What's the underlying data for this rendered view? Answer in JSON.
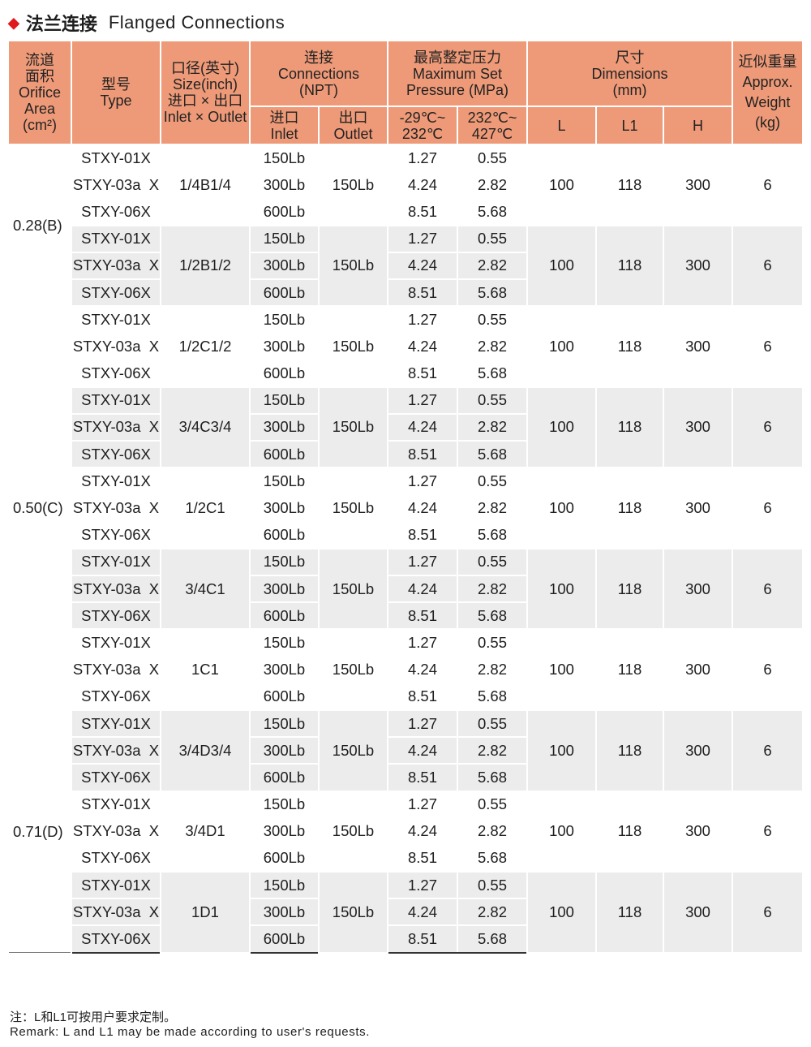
{
  "title": {
    "zh": "法兰连接",
    "en": "Flanged Connections",
    "bullet_color": "#e0191e"
  },
  "colors": {
    "header": "#ee9a78",
    "shade": "#ececec"
  },
  "headers": {
    "orifice": "流道\n面积\nOrifice\nArea\n(cm²)",
    "type": "型号\nType",
    "size": "口径(英寸)\nSize(inch)\n进口 × 出口\nInlet × Outlet",
    "connections": "连接\nConnections\n(NPT)",
    "inlet": "进口\nInlet",
    "outlet": "出口\nOutlet",
    "pressure": "最高整定压力\nMaximum Set\nPressure (MPa)",
    "p1": "-29℃~\n232℃",
    "p2": "232℃~\n427℃",
    "dimensions": "尺寸\nDimensions\n(mm)",
    "L": "L",
    "L1": "L1",
    "H": "H",
    "weight": "近似重量\nApprox.\nWeight\n(kg)"
  },
  "orifices": [
    {
      "label": "0.28(B)",
      "groups": 2
    },
    {
      "label": "0.50(C)",
      "groups": 5
    },
    {
      "label": "0.71(D)",
      "groups": 3
    }
  ],
  "groups": [
    {
      "size": "1/4B1/4"
    },
    {
      "size": "1/2B1/2"
    },
    {
      "size": "1/2C1/2"
    },
    {
      "size": "3/4C3/4"
    },
    {
      "size": "1/2C1"
    },
    {
      "size": "3/4C1"
    },
    {
      "size": "1C1"
    },
    {
      "size": "3/4D3/4"
    },
    {
      "size": "3/4D1"
    },
    {
      "size": "1D1"
    }
  ],
  "group_rows": [
    {
      "type": "STXY-01X",
      "inlet": "150Lb",
      "p1": "1.27",
      "p2": "0.55"
    },
    {
      "type": "STXY-03a  X",
      "inlet": "300Lb",
      "p1": "4.24",
      "p2": "2.82"
    },
    {
      "type": "STXY-06X",
      "inlet": "600Lb",
      "p1": "8.51",
      "p2": "5.68"
    }
  ],
  "group_common": {
    "outlet": "150Lb",
    "L": "100",
    "L1": "118",
    "H": "300",
    "weight": "6"
  },
  "note": {
    "zh": "注：L和L1可按用户要求定制。",
    "en": "Remark: L and L1 may be made according to user's requests."
  }
}
